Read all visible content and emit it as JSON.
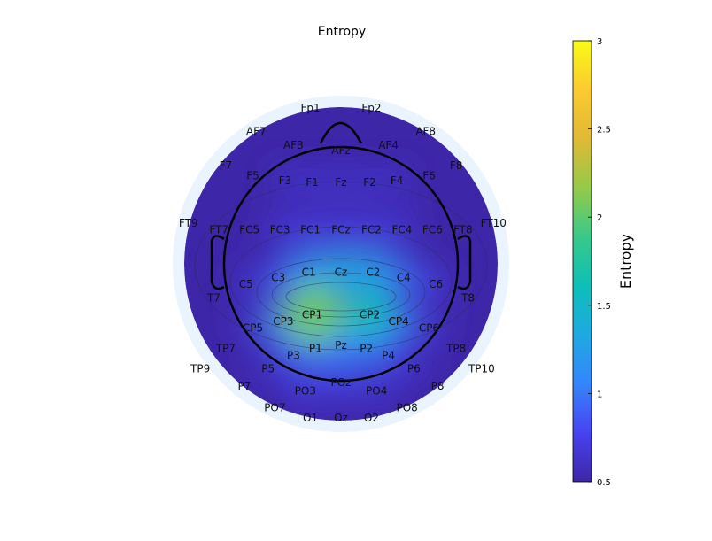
{
  "chart_data": {
    "type": "heatmap",
    "title": "Entropy",
    "colorbar": {
      "label": "Entropy",
      "min": 0.5,
      "max": 3,
      "ticks": [
        0.5,
        1,
        1.5,
        2,
        2.5,
        3
      ],
      "tick_labels": [
        "0.5",
        "1",
        "1.5",
        "2",
        "2.5",
        "3"
      ],
      "colormap": [
        "#3e26a8",
        "#4743f1",
        "#3485fe",
        "#1fa9e1",
        "#0cbfb8",
        "#39c988",
        "#95ca47",
        "#e0b935",
        "#fcca2f",
        "#f9fb15"
      ]
    },
    "head": {
      "outline_color": "#000000",
      "background_ring": "#eaf4fe"
    },
    "electrodes": [
      {
        "label": "Fp1",
        "value": 0.55
      },
      {
        "label": "Fp2",
        "value": 0.55
      },
      {
        "label": "AF7",
        "value": 0.55
      },
      {
        "label": "AF3",
        "value": 0.6
      },
      {
        "label": "AFz",
        "value": 0.6
      },
      {
        "label": "AF4",
        "value": 0.6
      },
      {
        "label": "AF8",
        "value": 0.55
      },
      {
        "label": "F7",
        "value": 0.55
      },
      {
        "label": "F5",
        "value": 0.6
      },
      {
        "label": "F3",
        "value": 0.65
      },
      {
        "label": "F1",
        "value": 0.65
      },
      {
        "label": "Fz",
        "value": 0.65
      },
      {
        "label": "F2",
        "value": 0.65
      },
      {
        "label": "F4",
        "value": 0.65
      },
      {
        "label": "F6",
        "value": 0.6
      },
      {
        "label": "F8",
        "value": 0.55
      },
      {
        "label": "FT9",
        "value": 0.5
      },
      {
        "label": "FT7",
        "value": 0.55
      },
      {
        "label": "FC5",
        "value": 0.6
      },
      {
        "label": "FC3",
        "value": 0.7
      },
      {
        "label": "FC1",
        "value": 0.75
      },
      {
        "label": "FCz",
        "value": 0.75
      },
      {
        "label": "FC2",
        "value": 0.75
      },
      {
        "label": "FC4",
        "value": 0.7
      },
      {
        "label": "FC6",
        "value": 0.6
      },
      {
        "label": "FT8",
        "value": 0.55
      },
      {
        "label": "FT10",
        "value": 0.5
      },
      {
        "label": "T7",
        "value": 0.55
      },
      {
        "label": "C5",
        "value": 0.65
      },
      {
        "label": "C3",
        "value": 0.85
      },
      {
        "label": "C1",
        "value": 1.2
      },
      {
        "label": "Cz",
        "value": 1.3
      },
      {
        "label": "C2",
        "value": 1.25
      },
      {
        "label": "C4",
        "value": 0.95
      },
      {
        "label": "C6",
        "value": 0.7
      },
      {
        "label": "T8",
        "value": 0.55
      },
      {
        "label": "TP9",
        "value": 0.5
      },
      {
        "label": "TP7",
        "value": 0.55
      },
      {
        "label": "CP5",
        "value": 0.7
      },
      {
        "label": "CP3",
        "value": 1.1
      },
      {
        "label": "CP1",
        "value": 2.05
      },
      {
        "label": "CP2",
        "value": 1.6
      },
      {
        "label": "CP4",
        "value": 1.0
      },
      {
        "label": "CP6",
        "value": 0.7
      },
      {
        "label": "TP8",
        "value": 0.55
      },
      {
        "label": "TP10",
        "value": 0.5
      },
      {
        "label": "P7",
        "value": 0.55
      },
      {
        "label": "P5",
        "value": 0.65
      },
      {
        "label": "P3",
        "value": 0.85
      },
      {
        "label": "P1",
        "value": 1.05
      },
      {
        "label": "Pz",
        "value": 1.05
      },
      {
        "label": "P2",
        "value": 1.0
      },
      {
        "label": "P4",
        "value": 0.8
      },
      {
        "label": "P6",
        "value": 0.65
      },
      {
        "label": "P8",
        "value": 0.55
      },
      {
        "label": "PO7",
        "value": 0.55
      },
      {
        "label": "PO3",
        "value": 0.75
      },
      {
        "label": "POz",
        "value": 0.8
      },
      {
        "label": "PO4",
        "value": 0.7
      },
      {
        "label": "PO8",
        "value": 0.55
      },
      {
        "label": "O1",
        "value": 0.6
      },
      {
        "label": "Oz",
        "value": 0.6
      },
      {
        "label": "O2",
        "value": 0.6
      }
    ]
  }
}
